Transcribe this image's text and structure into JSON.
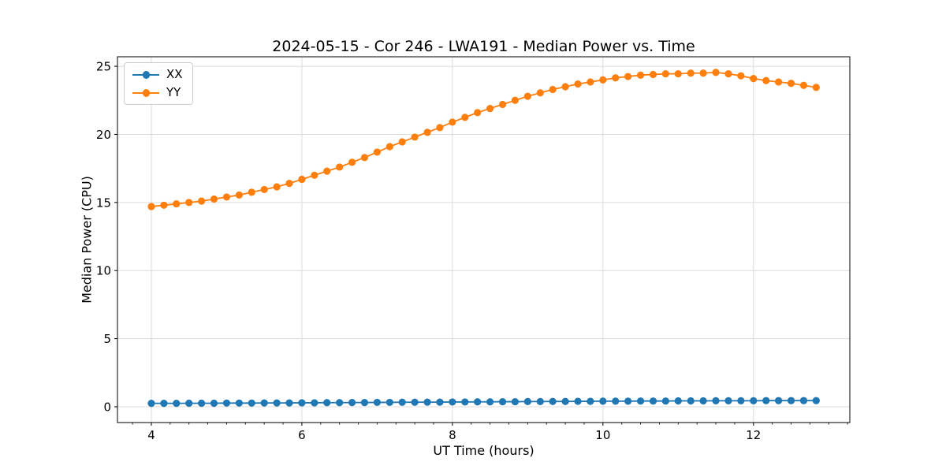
{
  "window": {
    "background": "#ffffff"
  },
  "chart_data": {
    "type": "line",
    "title": "2024-05-15 - Cor 246 - LWA191 - Median Power vs. Time",
    "xlabel": "UT Time (hours)",
    "ylabel": "Median Power (CPU)",
    "xlim": [
      3.55,
      13.28
    ],
    "ylim": [
      -1.16,
      25.7
    ],
    "xticks": [
      4,
      6,
      8,
      10,
      12
    ],
    "yticks": [
      0,
      5,
      10,
      15,
      20,
      25
    ],
    "x_minor_tick_step": 0.25,
    "grid": true,
    "grid_color": "#dcdcdc",
    "legend_position": "upper left",
    "x": [
      4.0,
      4.167,
      4.333,
      4.5,
      4.667,
      4.833,
      5.0,
      5.167,
      5.333,
      5.5,
      5.667,
      5.833,
      6.0,
      6.167,
      6.333,
      6.5,
      6.667,
      6.833,
      7.0,
      7.167,
      7.333,
      7.5,
      7.667,
      7.833,
      8.0,
      8.167,
      8.333,
      8.5,
      8.667,
      8.833,
      9.0,
      9.167,
      9.333,
      9.5,
      9.667,
      9.833,
      10.0,
      10.167,
      10.333,
      10.5,
      10.667,
      10.833,
      11.0,
      11.167,
      11.333,
      11.5,
      11.667,
      11.833,
      12.0,
      12.167,
      12.333,
      12.5,
      12.667,
      12.833
    ],
    "series": [
      {
        "name": "XX",
        "color": "#1f77b4",
        "marker": "circle",
        "values": [
          0.25,
          0.25,
          0.25,
          0.26,
          0.26,
          0.26,
          0.27,
          0.27,
          0.27,
          0.28,
          0.28,
          0.28,
          0.29,
          0.29,
          0.3,
          0.3,
          0.31,
          0.31,
          0.32,
          0.32,
          0.33,
          0.33,
          0.34,
          0.34,
          0.35,
          0.35,
          0.36,
          0.36,
          0.37,
          0.37,
          0.38,
          0.38,
          0.39,
          0.39,
          0.4,
          0.4,
          0.41,
          0.41,
          0.41,
          0.42,
          0.42,
          0.42,
          0.43,
          0.43,
          0.43,
          0.44,
          0.44,
          0.44,
          0.44,
          0.45,
          0.45,
          0.45,
          0.45,
          0.45
        ]
      },
      {
        "name": "YY",
        "color": "#ff7f0e",
        "marker": "circle",
        "values": [
          14.7,
          14.8,
          14.9,
          15.0,
          15.1,
          15.25,
          15.4,
          15.55,
          15.75,
          15.95,
          16.15,
          16.4,
          16.7,
          17.0,
          17.3,
          17.6,
          17.95,
          18.3,
          18.7,
          19.1,
          19.45,
          19.8,
          20.15,
          20.5,
          20.9,
          21.25,
          21.6,
          21.9,
          22.2,
          22.5,
          22.8,
          23.05,
          23.3,
          23.5,
          23.7,
          23.85,
          24.0,
          24.15,
          24.25,
          24.35,
          24.4,
          24.45,
          24.45,
          24.5,
          24.5,
          24.55,
          24.45,
          24.3,
          24.1,
          23.95,
          23.85,
          23.75,
          23.6,
          23.45
        ]
      }
    ]
  }
}
